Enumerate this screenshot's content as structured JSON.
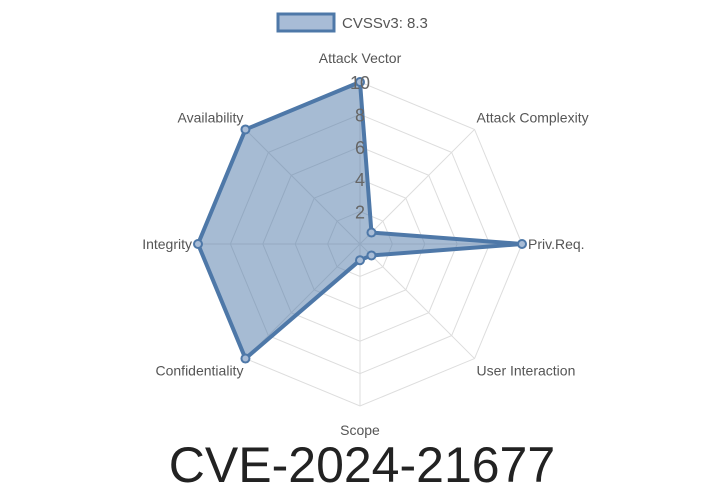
{
  "chart_data": {
    "type": "radar",
    "title": "CVE-2024-21677",
    "categories": [
      "Attack Vector",
      "Attack Complexity",
      "Priv.Req.",
      "User Interaction",
      "Scope",
      "Confidentiality",
      "Integrity",
      "Availability"
    ],
    "series": [
      {
        "name": "CVSSv3: 8.3",
        "values": [
          10,
          1,
          10,
          1,
          1,
          10,
          10,
          10
        ]
      }
    ],
    "rlim": [
      0,
      10
    ],
    "ticks": [
      "2",
      "4",
      "6",
      "8",
      "10"
    ],
    "tick_values": [
      2,
      4,
      6,
      8,
      10
    ],
    "grid": true,
    "legend": "top",
    "colors": {
      "line": "#4e78a8",
      "fill": "#a8bcd6",
      "grid": "#dddddd",
      "text": "#555555"
    }
  }
}
